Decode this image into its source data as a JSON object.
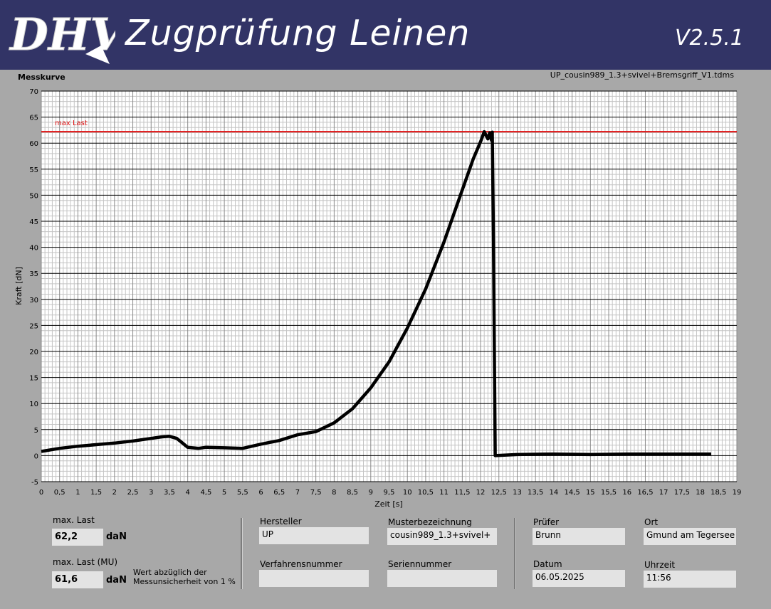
{
  "header": {
    "logo_text": "DHV",
    "title": "Zugprüfung Leinen",
    "version": "V2.5.1"
  },
  "chart_panel": {
    "title": "Messkurve",
    "file_name": "UP_cousin989_1.3+svivel+Bremsgriff_V1.tdms"
  },
  "chart_data": {
    "type": "line",
    "xlabel": "Zeit [s]",
    "ylabel": "Kraft [dN]",
    "xlim": [
      0,
      19
    ],
    "ylim": [
      -5,
      70
    ],
    "x_ticks": [
      "0",
      "0,5",
      "1",
      "1,5",
      "2",
      "2,5",
      "3",
      "3,5",
      "4",
      "4,5",
      "5",
      "5,5",
      "6",
      "6,5",
      "7",
      "7,5",
      "8",
      "8,5",
      "9",
      "9,5",
      "10",
      "10,5",
      "11",
      "11,5",
      "12",
      "12,5",
      "13",
      "13,5",
      "14",
      "14,5",
      "15",
      "15,5",
      "16",
      "16,5",
      "17",
      "17,5",
      "18",
      "18,5",
      "19"
    ],
    "y_ticks": [
      "-5",
      "0",
      "5",
      "10",
      "15",
      "20",
      "25",
      "30",
      "35",
      "40",
      "45",
      "50",
      "55",
      "60",
      "65",
      "70"
    ],
    "grid": true,
    "annotation": {
      "label": "max Last",
      "y": 62.2,
      "color": "#e01010"
    },
    "series": [
      {
        "color": "#000000",
        "x": [
          0,
          0.5,
          1,
          1.5,
          2,
          2.5,
          3,
          3.3,
          3.5,
          3.7,
          4,
          4.3,
          4.5,
          5,
          5.5,
          6,
          6.5,
          7,
          7.5,
          8,
          8.5,
          9,
          9.5,
          10,
          10.5,
          11,
          11.5,
          11.8,
          12,
          12.1,
          12.2,
          12.25,
          12.3,
          12.32,
          12.35,
          12.4,
          13,
          14,
          15,
          16,
          17,
          18,
          18.3
        ],
        "y": [
          0.8,
          1.4,
          1.8,
          2.1,
          2.4,
          2.8,
          3.3,
          3.6,
          3.7,
          3.3,
          1.6,
          1.4,
          1.6,
          1.5,
          1.4,
          2.2,
          2.9,
          4.0,
          4.6,
          6.3,
          9.0,
          13.0,
          18.0,
          24.5,
          32.0,
          41.0,
          51.0,
          57.0,
          60.3,
          62.2,
          60.8,
          62.0,
          60.5,
          62.1,
          42.0,
          0.0,
          0.2,
          0.3,
          0.2,
          0.3,
          0.3,
          0.3,
          0.3
        ]
      }
    ]
  },
  "results": {
    "max_last_label": "max. Last",
    "max_last_value": "62,2",
    "max_last_unit": "daN",
    "max_last_mu_label": "max. Last (MU)",
    "max_last_mu_value": "61,6",
    "max_last_mu_unit": "daN",
    "note_line1": "Wert abzüglich der",
    "note_line2": "Messunsicherheit von 1 %"
  },
  "info": {
    "hersteller_label": "Hersteller",
    "hersteller_value": "UP",
    "muster_label": "Musterbezeichnung",
    "muster_value": "cousin989_1.3+svivel+",
    "verfahren_label": "Verfahrensnummer",
    "verfahren_value": "",
    "serien_label": "Seriennummer",
    "serien_value": "",
    "pruefer_label": "Prüfer",
    "pruefer_value": "Brunn",
    "ort_label": "Ort",
    "ort_value": "Gmund am Tegersee",
    "datum_label": "Datum",
    "datum_value": "06.05.2025",
    "uhrzeit_label": "Uhrzeit",
    "uhrzeit_value": "11:56"
  }
}
